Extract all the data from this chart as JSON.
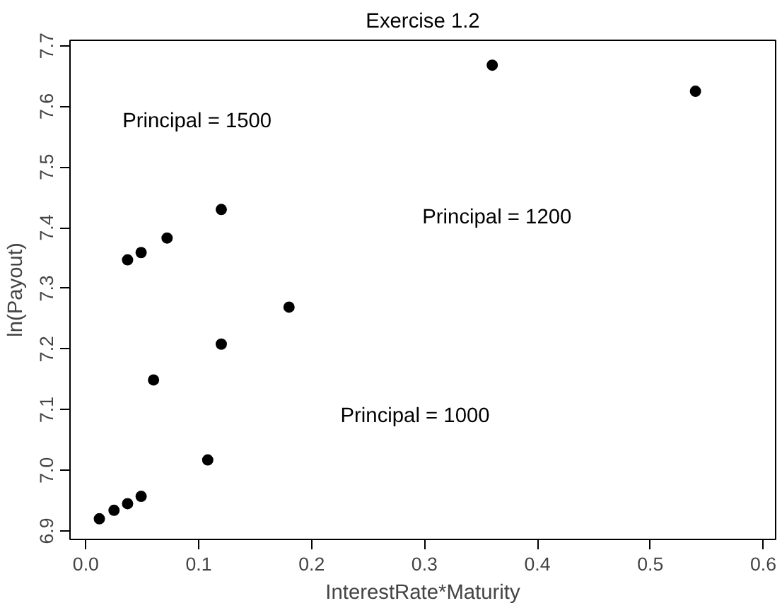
{
  "chart_data": {
    "type": "scatter",
    "title": "Exercise 1.2",
    "xlabel": "InterestRate*Maturity",
    "ylabel": "ln(Payout)",
    "x": [
      0.012,
      0.025,
      0.037,
      0.049,
      0.108,
      0.06,
      0.12,
      0.18,
      0.037,
      0.049,
      0.072,
      0.12,
      0.36,
      0.54
    ],
    "series": [
      {
        "color": "#000000",
        "values": [
          6.92,
          6.934,
          6.945,
          6.957,
          7.017,
          7.149,
          7.208,
          7.269,
          7.347,
          7.359,
          7.383,
          7.43,
          7.668,
          7.625
        ]
      }
    ],
    "annotations": [
      "Principal = 1500",
      "Principal = 1200",
      "Principal = 1000"
    ],
    "xlim": [
      -0.014,
      0.611
    ],
    "ylim": [
      6.886,
      7.709
    ],
    "xticks": [
      {
        "value": 0,
        "label": "0.0"
      },
      0.1,
      0.2,
      0.3,
      0.4,
      0.5,
      0.6
    ],
    "yticks": [
      6.9,
      {
        "value": 7,
        "label": "7.0"
      },
      7.1,
      7.2,
      7.3,
      7.4,
      7.5,
      7.6,
      7.7
    ],
    "marker": "circle"
  }
}
